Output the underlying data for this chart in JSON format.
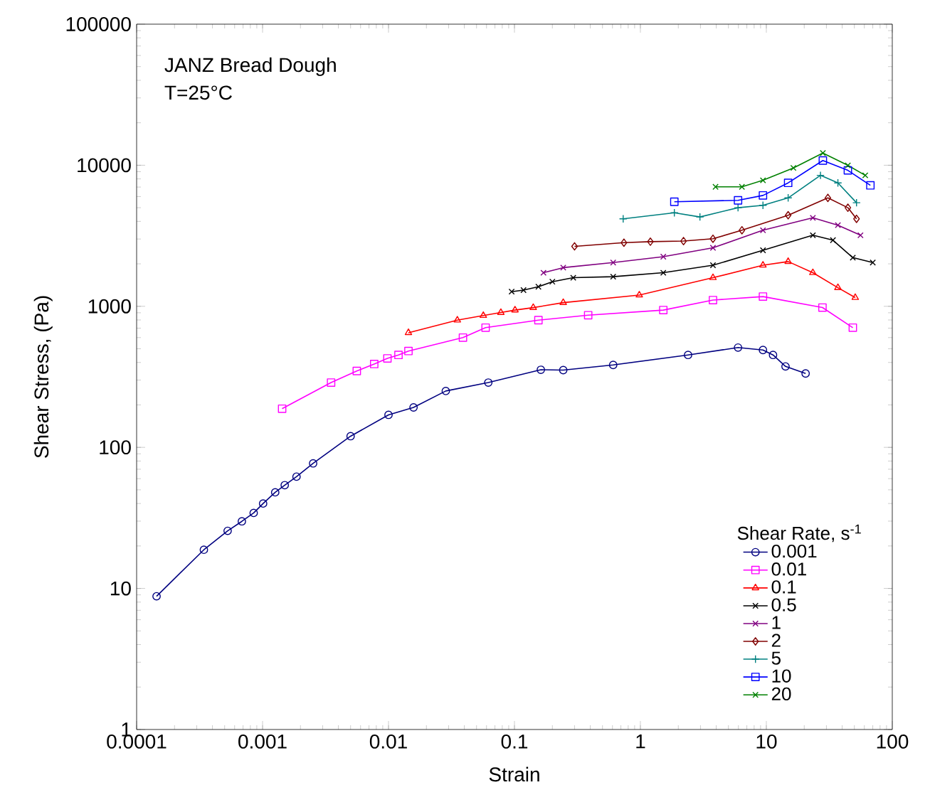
{
  "chart_data": {
    "type": "line",
    "xlabel": "Strain",
    "ylabel": "Shear Stress, (Pa)",
    "legend_title": "Shear Rate, s$^{-1}$",
    "annotations": [
      "JANZ Bread Dough",
      "T=25°C"
    ],
    "log": "xy",
    "legend": "bottom right",
    "grid": false,
    "line_style": "solid",
    "xlim": [
      0.0001,
      100
    ],
    "ylim": [
      1,
      100000
    ],
    "xticks": [
      0.0001,
      0.001,
      0.01,
      0.1,
      1,
      10,
      100
    ],
    "yticks": [
      1,
      10,
      100,
      1000,
      10000,
      100000
    ],
    "series": [
      {
        "name": "0.001",
        "color": "#000080",
        "marker": "circle",
        "x": [
          0.000144,
          0.000342,
          0.000528,
          0.000685,
          0.00085,
          0.00101,
          0.00126,
          0.0015,
          0.00186,
          0.00252,
          0.005,
          0.01,
          0.0158,
          0.0285,
          0.062,
          0.162,
          0.244,
          0.608,
          2.39,
          5.96,
          9.4,
          11.3,
          14.2,
          20.5
        ],
        "values": [
          8.8,
          18.8,
          25.6,
          29.9,
          34.3,
          40,
          48,
          54,
          62,
          77,
          120,
          170,
          192,
          251,
          288,
          355,
          353,
          384,
          452,
          510,
          490,
          452,
          375,
          334
        ]
      },
      {
        "name": "0.01",
        "color": "#ff00ff",
        "marker": "square",
        "x": [
          0.00143,
          0.0035,
          0.0056,
          0.0077,
          0.0098,
          0.012,
          0.0144,
          0.039,
          0.059,
          0.155,
          0.385,
          1.52,
          3.77,
          9.4,
          27.9,
          48.6
        ],
        "values": [
          188,
          288,
          348,
          390,
          427,
          452,
          482,
          600,
          706,
          798,
          865,
          940,
          1107,
          1172,
          980,
          706
        ]
      },
      {
        "name": "0.1",
        "color": "#ff0000",
        "marker": "triangle",
        "x": [
          0.0144,
          0.0352,
          0.0566,
          0.078,
          0.101,
          0.141,
          0.244,
          0.98,
          3.77,
          9.4,
          14.9,
          23.4,
          37,
          50.8
        ],
        "values": [
          650,
          798,
          860,
          903,
          940,
          979,
          1062,
          1202,
          1595,
          1956,
          2075,
          1730,
          1355,
          1153
        ]
      },
      {
        "name": "0.5",
        "color": "#000000",
        "marker": "cross",
        "x": [
          0.095,
          0.118,
          0.155,
          0.2,
          0.293,
          0.608,
          1.52,
          3.77,
          9.4,
          23.4,
          33.8,
          48.6,
          70
        ],
        "values": [
          1270,
          1303,
          1377,
          1494,
          1595,
          1622,
          1730,
          1956,
          2494,
          3190,
          2943,
          2213,
          2042
        ]
      },
      {
        "name": "1",
        "color": "#800080",
        "marker": "cross",
        "x": [
          0.17,
          0.244,
          0.608,
          1.52,
          3.77,
          9.4,
          23.4,
          37,
          55.9
        ],
        "values": [
          1730,
          1880,
          2042,
          2249,
          2600,
          3460,
          4240,
          3760,
          3190
        ]
      },
      {
        "name": "2",
        "color": "#800000",
        "marker": "diamond",
        "x": [
          0.3,
          0.74,
          1.2,
          2.2,
          3.77,
          6.4,
          14.9,
          30.8,
          44.4,
          52
        ],
        "values": [
          2660,
          2825,
          2871,
          2900,
          3013,
          3460,
          4420,
          5870,
          5000,
          4170
        ]
      },
      {
        "name": "5",
        "color": "#008080",
        "marker": "plus",
        "x": [
          0.73,
          1.86,
          2.97,
          5.96,
          9.4,
          14.9,
          26.9,
          37,
          52
        ],
        "values": [
          4170,
          4600,
          4300,
          5000,
          5200,
          5870,
          8480,
          7500,
          5420
        ]
      },
      {
        "name": "10",
        "color": "#0000ff",
        "marker": "square",
        "x": [
          1.86,
          5.96,
          9.4,
          14.9,
          28.1,
          44.4,
          67
        ],
        "values": [
          5510,
          5640,
          6110,
          7500,
          10800,
          9200,
          7200
        ]
      },
      {
        "name": "20",
        "color": "#008000",
        "marker": "cross",
        "x": [
          3.95,
          6.4,
          9.4,
          16.4,
          28.1,
          44.4,
          61
        ],
        "values": [
          7030,
          7030,
          7820,
          9570,
          12200,
          9980,
          8480
        ]
      }
    ]
  }
}
